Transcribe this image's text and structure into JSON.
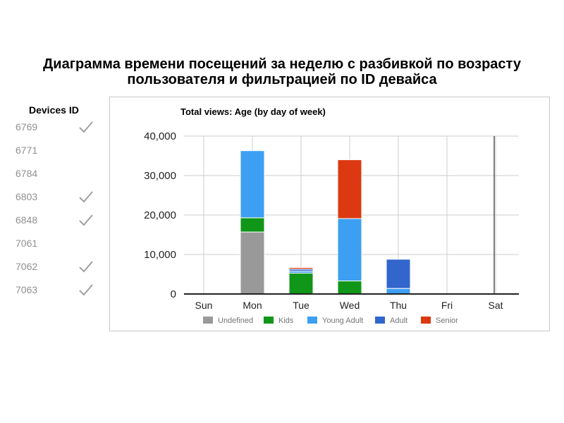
{
  "page": {
    "title_line1": "Диаграмма времени посещений за неделю с разбивкой по возрасту",
    "title_line2": "пользователя и фильтрацией по ID девайса"
  },
  "devices": {
    "title": "Devices ID",
    "items": [
      {
        "id": "6769",
        "checked": true
      },
      {
        "id": "6771",
        "checked": false
      },
      {
        "id": "6784",
        "checked": false
      },
      {
        "id": "6803",
        "checked": true
      },
      {
        "id": "6848",
        "checked": true
      },
      {
        "id": "7061",
        "checked": false
      },
      {
        "id": "7062",
        "checked": true
      },
      {
        "id": "7063",
        "checked": true
      }
    ]
  },
  "chart_data": {
    "type": "bar",
    "stacked": true,
    "title": "Total views: Age (by day of week)",
    "categories": [
      "Sun",
      "Mon",
      "Tue",
      "Wed",
      "Thu",
      "Fri",
      "Sat"
    ],
    "ylim": [
      0,
      40000
    ],
    "yticks": [
      0,
      10000,
      20000,
      30000,
      40000
    ],
    "ytick_labels": [
      "0",
      "10,000",
      "20,000",
      "30,000",
      "40,000"
    ],
    "grid": true,
    "legend_position": "bottom",
    "series": [
      {
        "name": "Undefined",
        "color": "#999999",
        "values": [
          0,
          15700,
          0,
          0,
          0,
          0,
          0
        ]
      },
      {
        "name": "Kids",
        "color": "#109618",
        "values": [
          0,
          3600,
          5300,
          3300,
          0,
          0,
          0
        ]
      },
      {
        "name": "Young Adult",
        "color": "#3d9ff2",
        "values": [
          0,
          17000,
          500,
          15800,
          1400,
          0,
          0
        ]
      },
      {
        "name": "Adult",
        "color": "#3366cc",
        "values": [
          0,
          0,
          500,
          0,
          7400,
          0,
          0
        ]
      },
      {
        "name": "Senior",
        "color": "#dc3912",
        "values": [
          0,
          0,
          400,
          14900,
          0,
          0,
          0
        ]
      }
    ]
  }
}
